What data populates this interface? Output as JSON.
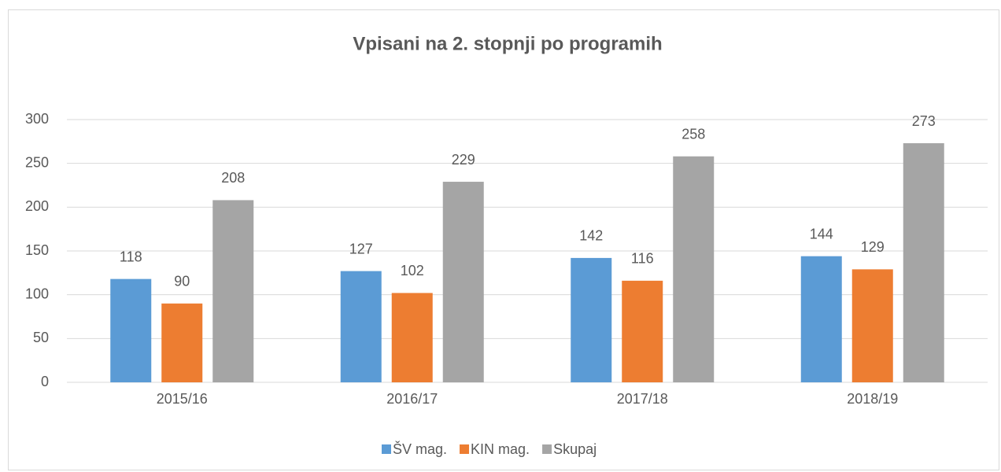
{
  "chart_data": {
    "type": "bar",
    "title": "Vpisani na 2. stopnji po programih",
    "categories": [
      "2015/16",
      "2016/17",
      "2017/18",
      "2018/19"
    ],
    "series": [
      {
        "name": "ŠV mag.",
        "color": "#5b9bd5",
        "values": [
          118,
          127,
          142,
          144
        ]
      },
      {
        "name": "KIN mag.",
        "color": "#ed7d31",
        "values": [
          90,
          102,
          116,
          129
        ]
      },
      {
        "name": "Skupaj",
        "color": "#a5a5a5",
        "values": [
          208,
          229,
          258,
          273
        ]
      }
    ],
    "ylim": [
      0,
      300
    ],
    "yticks": [
      0,
      50,
      100,
      150,
      200,
      250,
      300
    ],
    "grid": true,
    "legend": "bottom"
  }
}
